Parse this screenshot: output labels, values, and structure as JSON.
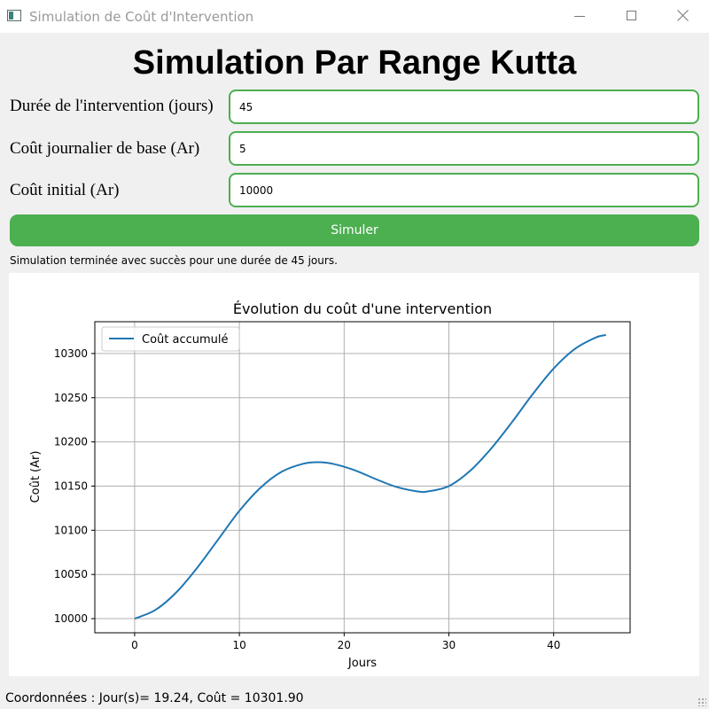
{
  "window": {
    "title": "Simulation de Coût d'Intervention",
    "icon": "app-icon"
  },
  "header": {
    "title": "Simulation Par Range Kutta"
  },
  "form": {
    "duration_label": "Durée de l'intervention (jours)",
    "duration_value": "45",
    "daily_cost_label": "Coût journalier de base (Ar)",
    "daily_cost_value": "5",
    "initial_cost_label": "Coût initial (Ar)",
    "initial_cost_value": "10000",
    "accent_color": "#4caf50"
  },
  "simulate_button": {
    "label": "Simuler",
    "color": "#4caf50"
  },
  "status": {
    "message": "Simulation terminée avec succès pour une durée de 45 jours."
  },
  "chart_data": {
    "type": "line",
    "title": "Évolution du coût d'une intervention",
    "xlabel": "Jours",
    "ylabel": "Coût (Ar)",
    "xlim": [
      -3.8,
      47.3
    ],
    "ylim": [
      9984,
      10336
    ],
    "xticks": [
      0,
      10,
      20,
      30,
      40
    ],
    "yticks": [
      10000,
      10050,
      10100,
      10150,
      10200,
      10250,
      10300
    ],
    "grid": true,
    "legend_position": "top-left",
    "series": [
      {
        "name": "Coût accumulé",
        "color": "#1f77b4",
        "x": [
          0,
          2,
          4,
          6,
          8,
          10,
          12,
          14,
          16,
          17.5,
          19,
          21,
          23,
          25,
          27,
          28,
          30,
          32,
          34,
          36,
          38,
          40,
          42,
          44,
          45
        ],
        "y": [
          10000,
          10010,
          10030,
          10058,
          10090,
          10122,
          10148,
          10166,
          10175,
          10177,
          10175,
          10168,
          10158,
          10149,
          10144,
          10144,
          10150,
          10167,
          10192,
          10222,
          10254,
          10283,
          10305,
          10318,
          10321
        ]
      }
    ]
  },
  "coordinates": {
    "readout": "Coordonnées : Jour(s)= 19.24, Coût = 10301.90"
  }
}
